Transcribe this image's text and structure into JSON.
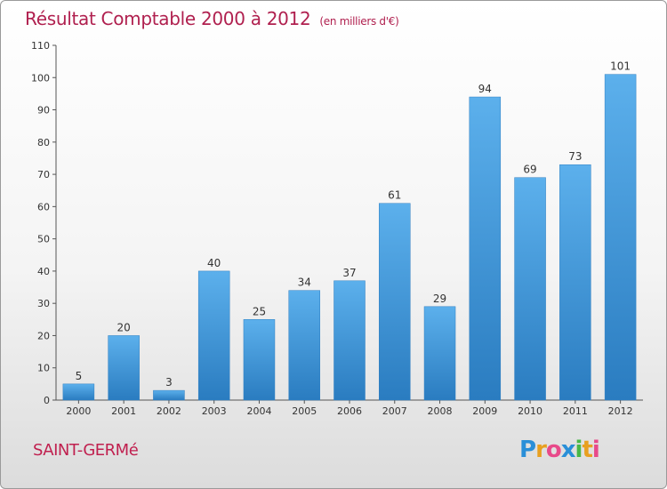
{
  "header": {
    "title": "Résultat Comptable 2000 à 2012",
    "subtitle": "(en milliers d'€)"
  },
  "footer": {
    "town": "SAINT-GERMé",
    "logo_letters": [
      "P",
      "r",
      "o",
      "x",
      "i",
      "t",
      "i"
    ],
    "logo_colors": [
      "#2a8fd8",
      "#e8a020",
      "#e84a8a",
      "#2a8fd8",
      "#49b847",
      "#e8a020",
      "#e84a8a"
    ]
  },
  "chart_data": {
    "type": "bar",
    "categories": [
      "2000",
      "2001",
      "2002",
      "2003",
      "2004",
      "2005",
      "2006",
      "2007",
      "2008",
      "2009",
      "2010",
      "2011",
      "2012"
    ],
    "values": [
      5,
      20,
      3,
      40,
      25,
      34,
      37,
      61,
      29,
      94,
      69,
      73,
      101
    ],
    "data_labels": [
      "5",
      "20",
      "3",
      "40",
      "25",
      "34",
      "37",
      "61",
      "29",
      "94",
      "69",
      "73",
      "101"
    ],
    "title": "Résultat Comptable 2000 à 2012",
    "subtitle": "(en milliers d'€)",
    "xlabel": "",
    "ylabel": "",
    "ylim": [
      0,
      110
    ],
    "yticks": [
      "0",
      "10",
      "20",
      "30",
      "40",
      "50",
      "60",
      "70",
      "80",
      "90",
      "100",
      "110"
    ],
    "bar_color": "#4fa3e0",
    "grid": false,
    "legend": "none"
  }
}
